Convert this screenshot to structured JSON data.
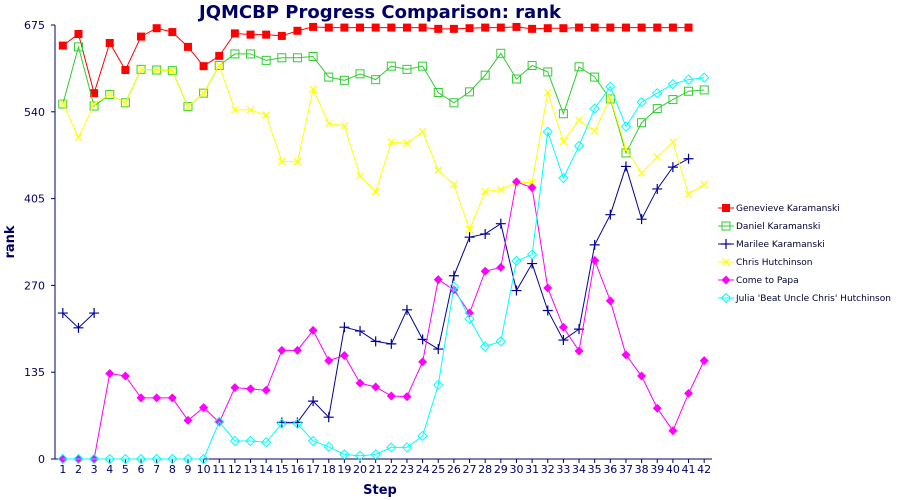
{
  "chart_data": {
    "type": "line",
    "title": "JQMCBP Progress Comparison: rank",
    "xlabel": "Step",
    "ylabel": "rank",
    "x": [
      1,
      2,
      3,
      4,
      5,
      6,
      7,
      8,
      9,
      10,
      11,
      12,
      13,
      14,
      15,
      16,
      17,
      18,
      19,
      20,
      21,
      22,
      23,
      24,
      25,
      26,
      27,
      28,
      29,
      30,
      31,
      32,
      33,
      34,
      35,
      36,
      37,
      38,
      39,
      40,
      41,
      42
    ],
    "xlim": [
      0.5,
      42.5
    ],
    "ylim": [
      0,
      675
    ],
    "yticks": [
      0,
      135,
      270,
      405,
      540,
      675
    ],
    "grid": false,
    "legend_position": "right",
    "series": [
      {
        "name": "Genevieve Karamanski",
        "color": "#ff0000",
        "marker": "square-filled",
        "values": [
          643,
          661,
          569,
          647,
          605,
          657,
          670,
          664,
          641,
          611,
          627,
          662,
          660,
          660,
          658,
          666,
          672,
          671,
          671,
          671,
          671,
          671,
          671,
          671,
          669,
          669,
          670,
          671,
          671,
          672,
          669,
          670,
          670,
          671,
          671,
          671,
          671,
          671,
          671,
          671,
          671,
          null
        ]
      },
      {
        "name": "Daniel Karamanski",
        "color": "#33cc33",
        "marker": "square-open",
        "values": [
          552,
          641,
          549,
          567,
          554,
          606,
          605,
          604,
          548,
          569,
          612,
          630,
          630,
          620,
          624,
          624,
          626,
          594,
          589,
          599,
          590,
          611,
          606,
          611,
          570,
          554,
          571,
          597,
          631,
          591,
          612,
          602,
          537,
          610,
          594,
          560,
          476,
          523,
          545,
          559,
          572,
          574
        ]
      },
      {
        "name": "Marilee Karamanski",
        "color": "#000099",
        "marker": "plus",
        "values": [
          227,
          204,
          227,
          null,
          null,
          null,
          null,
          null,
          null,
          null,
          null,
          null,
          null,
          null,
          57,
          57,
          90,
          65,
          205,
          199,
          183,
          179,
          232,
          186,
          171,
          285,
          345,
          350,
          366,
          262,
          304,
          231,
          185,
          202,
          333,
          380,
          455,
          373,
          420,
          454,
          467,
          null
        ]
      },
      {
        "name": "Chris Hutchinson",
        "color": "#ffff00",
        "marker": "cross",
        "values": [
          553,
          500,
          552,
          567,
          554,
          606,
          605,
          604,
          548,
          569,
          612,
          543,
          543,
          535,
          463,
          462,
          575,
          522,
          518,
          440,
          416,
          493,
          491,
          509,
          449,
          427,
          357,
          416,
          419,
          430,
          430,
          570,
          494,
          527,
          510,
          562,
          482,
          445,
          470,
          493,
          412,
          427
        ]
      },
      {
        "name": "Come to Papa",
        "color": "#ff00ff",
        "marker": "diamond",
        "values": [
          0,
          0,
          0,
          133,
          129,
          95,
          95,
          95,
          60,
          80,
          57,
          111,
          109,
          107,
          169,
          169,
          200,
          153,
          161,
          118,
          112,
          98,
          97,
          151,
          279,
          263,
          227,
          292,
          298,
          431,
          422,
          266,
          205,
          168,
          309,
          246,
          162,
          129,
          79,
          44,
          102,
          153
        ]
      },
      {
        "name": "Julia 'Beat Uncle Chris' Hutchinson",
        "color": "#00ffff",
        "marker": "diamond-open",
        "values": [
          0,
          0,
          0,
          0,
          0,
          0,
          0,
          0,
          0,
          0,
          58,
          28,
          28,
          26,
          55,
          55,
          28,
          19,
          7,
          5,
          7,
          18,
          18,
          36,
          115,
          268,
          218,
          175,
          183,
          308,
          318,
          509,
          437,
          487,
          545,
          579,
          517,
          555,
          569,
          583,
          590,
          593
        ]
      }
    ]
  }
}
